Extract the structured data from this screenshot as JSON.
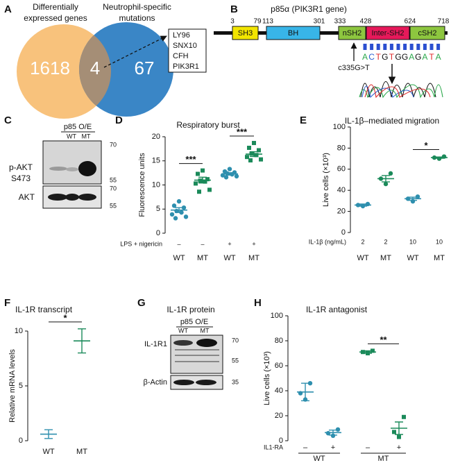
{
  "panel_letters": [
    "A",
    "B",
    "C",
    "D",
    "E",
    "F",
    "G",
    "H"
  ],
  "venn": {
    "set_labels": [
      "Differentially expressed genes",
      "Neutrophil-specific mutations"
    ],
    "counts": [
      1618,
      4,
      67
    ],
    "overlap_genes": [
      "LY96",
      "SNX10",
      "CFH",
      "PIK3R1"
    ]
  },
  "protein_diagram": {
    "title": "p85α (PIK3R1 gene)",
    "domains": [
      {
        "name": "SH3",
        "color": "#f2e500"
      },
      {
        "name": "BH",
        "color": "#38b5e8"
      },
      {
        "name": "nSH2",
        "color": "#8dc63f"
      },
      {
        "name": "Inter-SH2",
        "color": "#e6195a"
      },
      {
        "name": "cSH2",
        "color": "#8dc63f"
      }
    ],
    "positions": [
      3,
      79,
      113,
      301,
      333,
      428,
      624,
      718
    ],
    "mutation": "c335G>T",
    "sequence": [
      "A",
      "C",
      "T",
      "G",
      "T",
      "G",
      "G",
      "A",
      "G",
      "A",
      "T",
      "A"
    ]
  },
  "blots": [
    {
      "header": "p85 O/E",
      "lanes": [
        "WT",
        "MT"
      ],
      "rows": [
        "p-AKT S473",
        "AKT"
      ],
      "markers": [
        70,
        55,
        70,
        55
      ]
    },
    {
      "title": "IL-1R protein",
      "header": "p85 O/E",
      "lanes": [
        "WT",
        "MT"
      ],
      "rows": [
        "IL-1R1",
        "β-Actin"
      ],
      "markers": [
        70,
        55,
        35
      ]
    }
  ],
  "chart_data": [
    {
      "type": "dotplot",
      "title": "Respiratory burst",
      "y_label": "Fluorescence units",
      "ylim": [
        0,
        20
      ],
      "yticks": [
        0,
        5,
        10,
        15,
        20
      ],
      "categories": [
        "WT",
        "MT",
        "WT",
        "MT"
      ],
      "condition_label": "LPS + nigericin",
      "conditions": [
        "–",
        "–",
        "+",
        "+"
      ],
      "groups": [
        {
          "color": "#2e8fae",
          "marker": "circle",
          "values": [
            6.6,
            5.7,
            5.3,
            4.6,
            4.3,
            3.9,
            3.4,
            3.1
          ],
          "mean": 4.8,
          "error": 0.5
        },
        {
          "color": "#1b8a5a",
          "marker": "square",
          "values": [
            13.0,
            12.3,
            11.2,
            10.9,
            10.7,
            10.3,
            9.0,
            8.6
          ],
          "mean": 11.0,
          "error": 0.6,
          "significance": "***"
        },
        {
          "color": "#2e8fae",
          "marker": "circle",
          "values": [
            13.3,
            12.8,
            12.6,
            12.4,
            12.2,
            12.0,
            11.8,
            11.6
          ],
          "mean": 12.3,
          "error": 0.25
        },
        {
          "color": "#1b8a5a",
          "marker": "square",
          "values": [
            18.7,
            17.7,
            17.2,
            16.5,
            16.2,
            15.8,
            15.3,
            15.1
          ],
          "mean": 16.4,
          "error": 0.5,
          "significance": "***"
        }
      ]
    },
    {
      "type": "dotplot",
      "title": "IL-1β–mediated migration",
      "y_label": "Live cells (×10³)",
      "ylim": [
        0,
        100
      ],
      "yticks": [
        0,
        20,
        40,
        60,
        80,
        100
      ],
      "categories": [
        "WT",
        "MT",
        "WT",
        "MT"
      ],
      "condition_label": "IL-1β (ng/mL)",
      "conditions": [
        "2",
        "2",
        "10",
        "10"
      ],
      "groups": [
        {
          "color": "#2e8fae",
          "marker": "circle",
          "values": [
            25,
            26,
            27
          ],
          "mean": 26,
          "error": 1
        },
        {
          "color": "#1b8a5a",
          "marker": "circle",
          "values": [
            46,
            51,
            56
          ],
          "mean": 51,
          "error": 3
        },
        {
          "color": "#2e8fae",
          "marker": "circle",
          "values": [
            29.5,
            32,
            34
          ],
          "mean": 32,
          "error": 1.5
        },
        {
          "color": "#1b8a5a",
          "marker": "circle",
          "values": [
            70,
            71,
            72
          ],
          "mean": 71,
          "error": 0.6,
          "significance": "*"
        }
      ]
    },
    {
      "type": "dotplot",
      "title": "IL-1R transcript",
      "y_label": "Relative mRNA levels",
      "ylim": [
        0,
        10
      ],
      "yticks": [
        0,
        5,
        10
      ],
      "categories": [
        "WT",
        "MT"
      ],
      "groups": [
        {
          "color": "#2e8fae",
          "mean": 0.6,
          "error": 0.4
        },
        {
          "color": "#1b8a5a",
          "mean": 9.1,
          "error": 1.1,
          "significance": "*"
        }
      ]
    },
    {
      "type": "dotplot",
      "title": "IL-1R antagonist",
      "y_label": "Live cells (×10³)",
      "ylim": [
        0,
        100
      ],
      "yticks": [
        0,
        20,
        40,
        60,
        80,
        100
      ],
      "categories": [
        "–",
        "+",
        "–",
        "+"
      ],
      "condition_label": "IL1-RA",
      "category_groups": [
        "WT",
        "MT"
      ],
      "groups": [
        {
          "color": "#2e8fae",
          "marker": "circle",
          "values": [
            33,
            38,
            46
          ],
          "mean": 39,
          "error": 7
        },
        {
          "color": "#2e8fae",
          "marker": "circle",
          "values": [
            4,
            6,
            9
          ],
          "mean": 6.5,
          "error": 2
        },
        {
          "color": "#1b8a5a",
          "marker": "square",
          "values": [
            70,
            71,
            72
          ],
          "mean": 71,
          "error": 1
        },
        {
          "color": "#1b8a5a",
          "marker": "square",
          "values": [
            3,
            7,
            19
          ],
          "mean": 10,
          "error": 5,
          "significance": "**"
        }
      ]
    }
  ]
}
